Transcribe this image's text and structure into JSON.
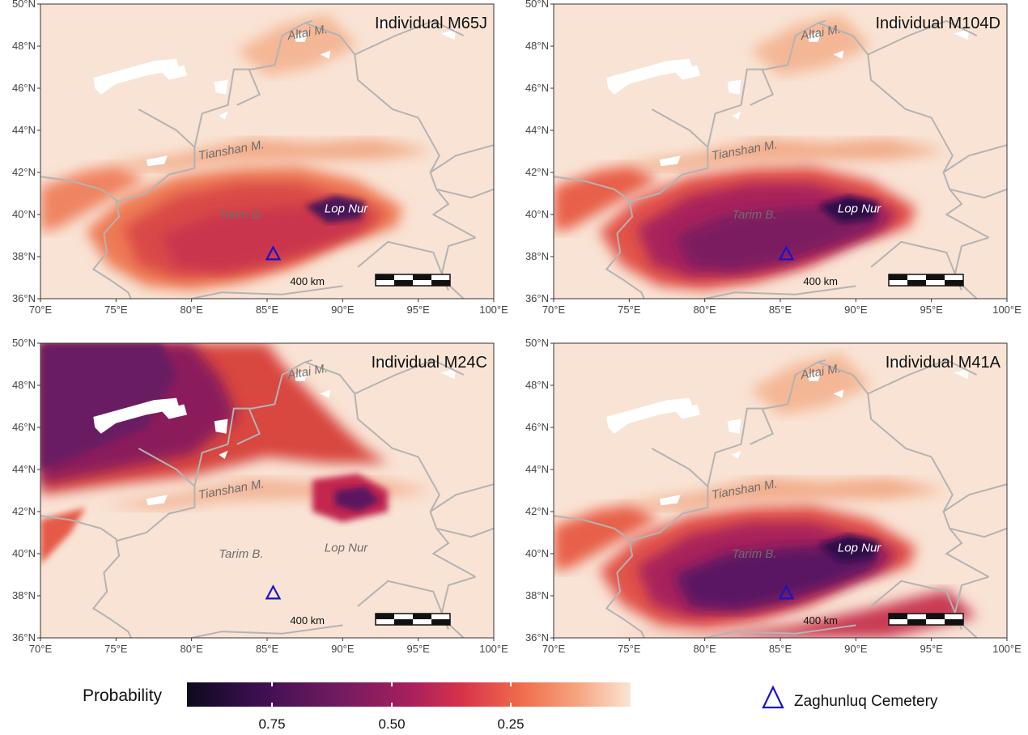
{
  "panels": [
    {
      "title": "Individual M65J",
      "labels": {
        "altai": "Altai M.",
        "tianshan": "Tianshan M.",
        "tarim": "Tarim B.",
        "lopnur": "Lop Nur"
      },
      "scale_label": "400 km",
      "pattern": "tarim",
      "intensity": 0.8
    },
    {
      "title": "Individual M104D",
      "labels": {
        "altai": "Altai M.",
        "tianshan": "Tianshan M.",
        "tarim": "Tarim B.",
        "lopnur": "Lop Nur"
      },
      "scale_label": "400 km",
      "pattern": "tarim",
      "intensity": 0.9
    },
    {
      "title": "Individual M24C",
      "labels": {
        "altai": "Altai M.",
        "tianshan": "Tianshan M.",
        "tarim": "Tarim B.",
        "lopnur": "Lop Nur"
      },
      "scale_label": "400 km",
      "pattern": "north",
      "intensity": 0.9
    },
    {
      "title": "Individual M41A",
      "labels": {
        "altai": "Altai M.",
        "tianshan": "Tianshan M.",
        "tarim": "Tarim B.",
        "lopnur": "Lop Nur"
      },
      "scale_label": "400 km",
      "pattern": "tarim",
      "intensity": 1.0
    }
  ],
  "axes": {
    "x_ticks": [
      "70°E",
      "75°E",
      "80°E",
      "85°E",
      "90°E",
      "95°E",
      "100°E"
    ],
    "y_ticks": [
      "36°N",
      "38°N",
      "40°N",
      "42°N",
      "44°N",
      "46°N",
      "48°N",
      "50°N"
    ],
    "xlim": [
      70,
      100
    ],
    "ylim": [
      36,
      50
    ]
  },
  "cemetery": {
    "lon": 85.4,
    "lat": 38.1,
    "label": "Zaghunluq Cemetery",
    "color": "#1a12c8"
  },
  "legend": {
    "title": "Probability",
    "ticks": [
      "0.75",
      "0.50",
      "0.25"
    ],
    "tick_values": [
      0.75,
      0.5,
      0.25
    ],
    "palette": [
      "#0d0a1e",
      "#3b0f4f",
      "#6e1a60",
      "#a51f5d",
      "#d8324a",
      "#ef6b4b",
      "#f6a47f",
      "#fbe4d4"
    ]
  }
}
